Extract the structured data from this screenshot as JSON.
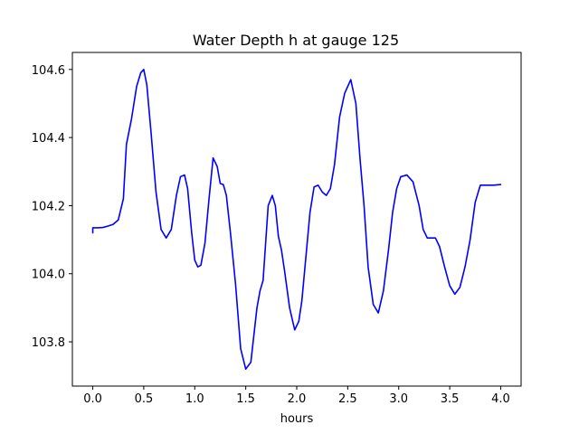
{
  "chart_data": {
    "type": "line",
    "title": "Water Depth h at gauge 125",
    "xlabel": "hours",
    "ylabel": "",
    "xlim": [
      -0.2,
      4.2
    ],
    "ylim": [
      103.67,
      104.65
    ],
    "xticks": [
      0.0,
      0.5,
      1.0,
      1.5,
      2.0,
      2.5,
      3.0,
      3.5,
      4.0
    ],
    "xtick_labels": [
      "0.0",
      "0.5",
      "1.0",
      "1.5",
      "2.0",
      "2.5",
      "3.0",
      "3.5",
      "4.0"
    ],
    "yticks": [
      103.8,
      104.0,
      104.2,
      104.4,
      104.6
    ],
    "ytick_labels": [
      "103.8",
      "104.0",
      "104.2",
      "104.4",
      "104.6"
    ],
    "grid": false,
    "series": [
      {
        "color": "#0000ff",
        "x": [
          0.0,
          0.0,
          0.05,
          0.1,
          0.15,
          0.2,
          0.25,
          0.3,
          0.33,
          0.38,
          0.43,
          0.47,
          0.5,
          0.53,
          0.57,
          0.62,
          0.67,
          0.72,
          0.77,
          0.82,
          0.86,
          0.9,
          0.93,
          0.97,
          1.0,
          1.03,
          1.06,
          1.1,
          1.14,
          1.18,
          1.22,
          1.25,
          1.28,
          1.31,
          1.35,
          1.4,
          1.45,
          1.5,
          1.55,
          1.58,
          1.61,
          1.64,
          1.67,
          1.72,
          1.76,
          1.79,
          1.82,
          1.85,
          1.88,
          1.93,
          1.98,
          2.02,
          2.05,
          2.09,
          2.13,
          2.17,
          2.21,
          2.25,
          2.29,
          2.33,
          2.37,
          2.42,
          2.47,
          2.53,
          2.58,
          2.62,
          2.66,
          2.7,
          2.75,
          2.8,
          2.85,
          2.9,
          2.94,
          2.98,
          3.02,
          3.08,
          3.14,
          3.2,
          3.24,
          3.28,
          3.32,
          3.36,
          3.4,
          3.45,
          3.5,
          3.55,
          3.6,
          3.65,
          3.7,
          3.75,
          3.8,
          3.87,
          3.93,
          4.0
        ],
        "y": [
          104.12,
          104.135,
          104.135,
          104.136,
          104.14,
          104.145,
          104.158,
          104.22,
          104.38,
          104.455,
          104.55,
          104.59,
          104.6,
          104.555,
          104.42,
          104.24,
          104.13,
          104.105,
          104.13,
          104.23,
          104.285,
          104.29,
          104.25,
          104.12,
          104.04,
          104.02,
          104.025,
          104.09,
          104.22,
          104.34,
          104.315,
          104.265,
          104.262,
          104.23,
          104.12,
          103.97,
          103.78,
          103.72,
          103.74,
          103.82,
          103.9,
          103.95,
          103.98,
          104.2,
          104.23,
          104.2,
          104.11,
          104.07,
          104.01,
          103.9,
          103.835,
          103.86,
          103.92,
          104.05,
          104.18,
          104.255,
          104.26,
          104.24,
          104.23,
          104.25,
          104.32,
          104.46,
          104.53,
          104.57,
          104.5,
          104.34,
          104.2,
          104.02,
          103.91,
          103.885,
          103.95,
          104.07,
          104.18,
          104.25,
          104.285,
          104.29,
          104.27,
          104.2,
          104.13,
          104.105,
          104.105,
          104.105,
          104.08,
          104.02,
          103.965,
          103.94,
          103.96,
          104.02,
          104.1,
          104.21,
          104.26,
          104.26,
          104.26,
          104.262
        ]
      }
    ]
  }
}
